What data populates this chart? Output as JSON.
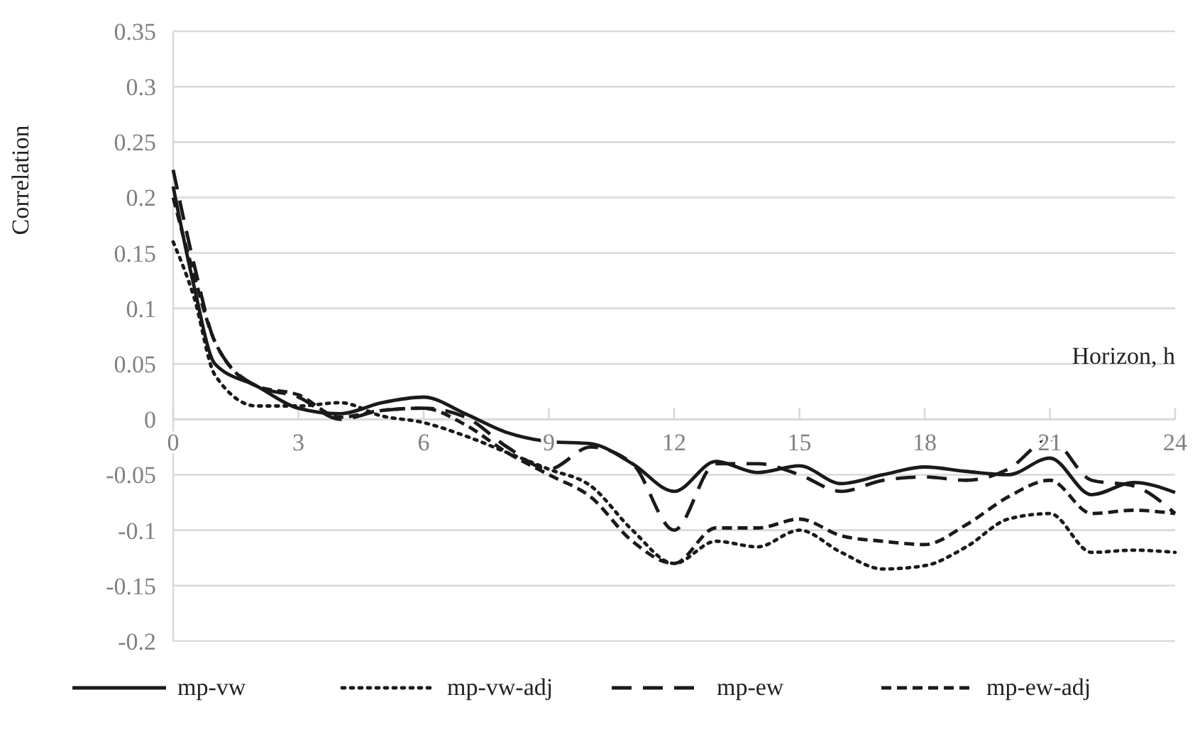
{
  "chart_data": {
    "type": "line",
    "ylabel": "Correlation",
    "xlabel": "Horizon, h",
    "xlim": [
      0,
      24
    ],
    "xticks": [
      0,
      3,
      6,
      9,
      12,
      15,
      18,
      21,
      24
    ],
    "ylim": [
      -0.2,
      0.35
    ],
    "yticks": [
      -0.2,
      -0.15,
      -0.1,
      -0.05,
      0,
      0.05,
      0.1,
      0.15,
      0.2,
      0.25,
      0.3,
      0.35
    ],
    "grid": "y",
    "legend": "bottom",
    "marker": "none",
    "x": [
      0,
      0.5,
      1,
      2,
      3,
      4,
      5,
      6,
      7,
      8,
      9,
      10,
      11,
      12,
      13,
      14,
      15,
      16,
      17,
      18,
      19,
      20,
      21,
      22,
      23,
      24
    ],
    "series": [
      {
        "name": "mp-vw",
        "color": "#1a1a1a",
        "line_style": "solid",
        "values": [
          0.21,
          0.12,
          0.05,
          0.03,
          0.01,
          0.005,
          0.015,
          0.02,
          0.005,
          -0.012,
          -0.02,
          -0.022,
          -0.04,
          -0.065,
          -0.038,
          -0.048,
          -0.042,
          -0.058,
          -0.05,
          -0.043,
          -0.047,
          -0.05,
          -0.035,
          -0.068,
          -0.057,
          -0.066
        ]
      },
      {
        "name": "mp-vw-adj",
        "color": "#1a1a1a",
        "line_style": "dotted",
        "values": [
          0.16,
          0.11,
          0.04,
          0.012,
          0.012,
          0.015,
          0.003,
          -0.003,
          -0.015,
          -0.03,
          -0.045,
          -0.06,
          -0.1,
          -0.13,
          -0.11,
          -0.115,
          -0.1,
          -0.12,
          -0.135,
          -0.132,
          -0.115,
          -0.09,
          -0.085,
          -0.12,
          -0.118,
          -0.12
        ]
      },
      {
        "name": "mp-ew",
        "color": "#1a1a1a",
        "line_style": "dashed",
        "values": [
          0.225,
          0.14,
          0.07,
          0.03,
          0.02,
          0.0,
          0.008,
          0.01,
          0.002,
          -0.025,
          -0.045,
          -0.025,
          -0.04,
          -0.1,
          -0.04,
          -0.04,
          -0.05,
          -0.065,
          -0.055,
          -0.052,
          -0.055,
          -0.045,
          -0.018,
          -0.055,
          -0.06,
          -0.085
        ]
      },
      {
        "name": "mp-ew-adj",
        "color": "#1a1a1a",
        "line_style": "dashed",
        "values": [
          0.2,
          0.13,
          0.07,
          0.03,
          0.022,
          0.002,
          0.008,
          0.01,
          -0.005,
          -0.03,
          -0.05,
          -0.07,
          -0.11,
          -0.13,
          -0.098,
          -0.098,
          -0.09,
          -0.105,
          -0.11,
          -0.113,
          -0.095,
          -0.07,
          -0.055,
          -0.085,
          -0.082,
          -0.085
        ]
      }
    ]
  }
}
